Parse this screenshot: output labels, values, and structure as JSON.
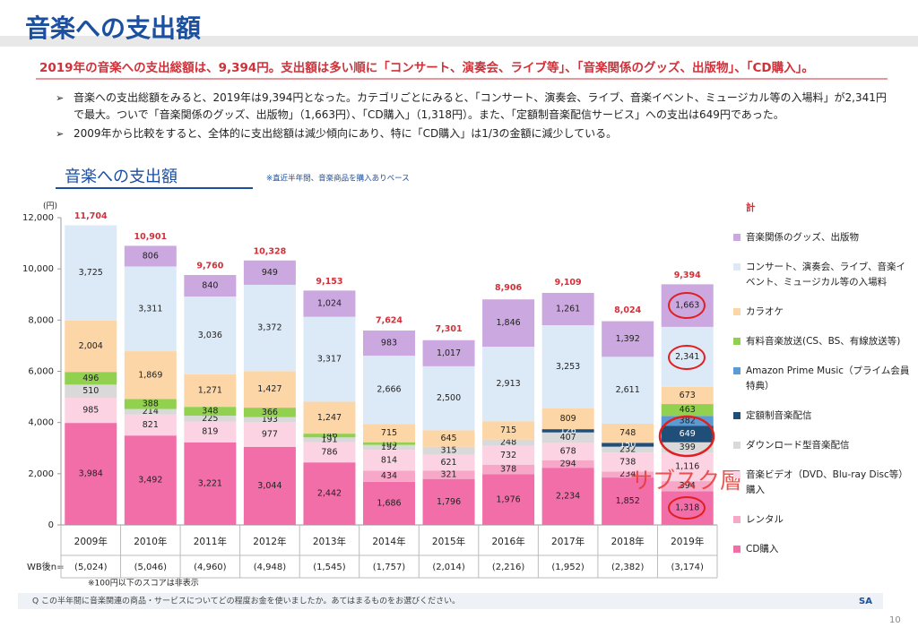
{
  "header": {
    "title": "音楽への支出額",
    "subtitle": "2019年の音楽への支出総額は、9,394円。支出額は多い順に「コンサート、演奏会、ライブ等」、「音楽関係のグッズ、出版物」、「CD購入」。",
    "bullets": [
      "音楽への支出総額をみると、2019年は9,394円となった。カテゴリごとにみると、「コンサート、演奏会、ライブ、音楽イベント、ミュージカル等の入場料」が2,341円で最大。ついで「音楽関係のグッズ、出版物」（1,663円）、「CD購入」（1,318円）。また、「定額制音楽配信サービス」への支出は649円であった。",
      "2009年から比較をすると、全体的に支出総額は減少傾向にあり、特に「CD購入」は1/3の金額に減少している。"
    ]
  },
  "chart_data": {
    "type": "stacked_bar",
    "title": "音楽への支出額",
    "note": "※直近半年間、音楽商品を購入ありベース",
    "y_unit": "(円)",
    "categories": [
      "2009年",
      "2010年",
      "2011年",
      "2012年",
      "2013年",
      "2014年",
      "2015年",
      "2016年",
      "2017年",
      "2018年",
      "2019年"
    ],
    "ylim": [
      0,
      12000
    ],
    "yticks": [
      0,
      {
        "value": 2000,
        "label": "2,000"
      },
      {
        "value": 4000,
        "label": "4,000"
      },
      {
        "value": 6000,
        "label": "6,000"
      },
      {
        "value": 8000,
        "label": "8,000"
      },
      {
        "value": 10000,
        "label": "10,000"
      },
      {
        "value": 12000,
        "label": "12,000"
      }
    ],
    "grid": false,
    "series": [
      {
        "name": "CD購入",
        "color": "#f26ea9",
        "values": [
          3984,
          3492,
          3221,
          3044,
          2442,
          1686,
          1796,
          1976,
          2234,
          1852,
          1318
        ],
        "value_labels": [
          "3,984",
          "3,492",
          "3,221",
          "3,044",
          "2,442",
          "1,686",
          "1,796",
          "1,976",
          "2,234",
          "1,852",
          "1,318"
        ]
      },
      {
        "name": "レンタル",
        "color": "#f7a8c8",
        "values": [
          null,
          null,
          null,
          null,
          null,
          434,
          321,
          378,
          294,
          234,
          394
        ],
        "value_labels": [
          null,
          null,
          null,
          null,
          null,
          "434",
          "321",
          "378",
          "294",
          "234",
          "394"
        ]
      },
      {
        "name": "音楽ビデオ（DVD、Blu-ray Disc等）購入",
        "color": "#fbd3e3",
        "values": [
          985,
          821,
          819,
          977,
          786,
          814,
          621,
          732,
          678,
          738,
          1116
        ],
        "value_labels": [
          "985",
          "821",
          "819",
          "977",
          "786",
          "814",
          "621",
          "732",
          "678",
          "738",
          "1,116"
        ]
      },
      {
        "name": "ダウンロード型音楽配信",
        "color": "#d9d9d9",
        "values": [
          510,
          214,
          225,
          193,
          191,
          192,
          315,
          248,
          407,
          232,
          399
        ],
        "value_labels": [
          "510",
          "214",
          "225",
          "193",
          "191",
          "192",
          "315",
          "248",
          "407",
          "232",
          "399"
        ]
      },
      {
        "name": "定額制音楽配信",
        "color": "#1f4e79",
        "text_color": "#ffffff",
        "values": [
          null,
          null,
          null,
          null,
          null,
          null,
          null,
          null,
          126,
          150,
          649
        ],
        "value_labels": [
          null,
          null,
          null,
          null,
          null,
          null,
          null,
          null,
          "126",
          "150",
          "649"
        ]
      },
      {
        "name": "Amazon Prime Music（プライム会員特典）",
        "color": "#5b9bd5",
        "values": [
          null,
          null,
          null,
          null,
          null,
          null,
          null,
          null,
          null,
          null,
          382
        ],
        "value_labels": [
          null,
          null,
          null,
          null,
          null,
          null,
          null,
          null,
          null,
          null,
          "382"
        ]
      },
      {
        "name": "有料音楽放送(CS、BS、有線放送等)",
        "color": "#92d050",
        "values": [
          496,
          388,
          348,
          366,
          146,
          103,
          null,
          null,
          null,
          null,
          463
        ],
        "value_labels": [
          "496",
          "388",
          "348",
          "366",
          "146",
          "103",
          null,
          null,
          null,
          null,
          "463"
        ]
      },
      {
        "name": "カラオケ",
        "color": "#fcd6a6",
        "values": [
          2004,
          1869,
          1271,
          1427,
          1247,
          715,
          645,
          715,
          809,
          748,
          673
        ],
        "value_labels": [
          "2,004",
          "1,869",
          "1,271",
          "1,427",
          "1,247",
          "715",
          "645",
          "715",
          "809",
          "748",
          "673"
        ]
      },
      {
        "name": "コンサート、演奏会、ライブ、音楽イベント、ミュージカル等の入場料",
        "color": "#dceaf8",
        "values": [
          3725,
          3311,
          3036,
          3372,
          3317,
          2666,
          2500,
          2913,
          3253,
          2611,
          2341
        ],
        "value_labels": [
          "3,725",
          "3,311",
          "3,036",
          "3,372",
          "3,317",
          "2,666",
          "2,500",
          "2,913",
          "3,253",
          "2,611",
          "2,341"
        ]
      },
      {
        "name": "音楽関係のグッズ、出版物",
        "color": "#cba8df",
        "values": [
          null,
          806,
          840,
          949,
          1024,
          983,
          1017,
          1846,
          1261,
          1392,
          1663
        ],
        "value_labels": [
          null,
          "806",
          "840",
          "949",
          "1,024",
          "983",
          "1,017",
          "1,846",
          "1,261",
          "1,392",
          "1,663"
        ]
      }
    ],
    "totals": {
      "name": "計",
      "color": "#d0313a",
      "values": [
        11704,
        10901,
        9760,
        10328,
        9153,
        7624,
        7301,
        8906,
        9109,
        8024,
        9394
      ],
      "value_labels": [
        "11,704",
        "10,901",
        "9,760",
        "10,328",
        "9,153",
        "7,624",
        "7,301",
        "8,906",
        "9,109",
        "8,024",
        "9,394"
      ]
    },
    "sample_label": "WB後n=",
    "sample_sizes": [
      "(5,024)",
      "(5,046)",
      "(4,960)",
      "(4,948)",
      "(1,545)",
      "(1,757)",
      "(2,014)",
      "(2,216)",
      "(1,952)",
      "(2,382)",
      "(3,174)"
    ],
    "footnote": "※100円以下のスコアは非表示",
    "annotation": "サブスク層"
  },
  "footer": {
    "question": "Q この半年間に音楽関連の商品・サービスについてどの程度お金を使いましたか。あてはまるものをお選びください。",
    "answer_type": "SA",
    "page": "10"
  }
}
